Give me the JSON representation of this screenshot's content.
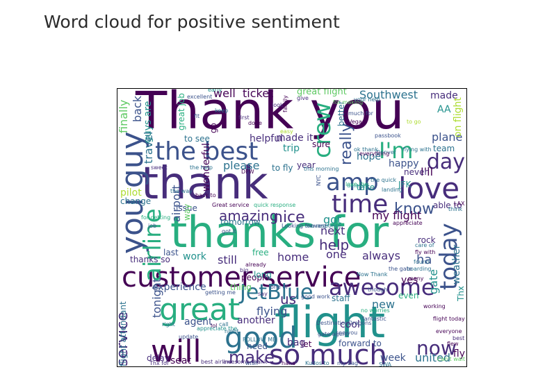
{
  "page": {
    "title": "Word cloud for positive sentiment"
  },
  "chart_data": {
    "type": "word_cloud",
    "title": "",
    "colormap": "viridis",
    "background": "#ffffff",
    "words": [
      "Thank you",
      "thank",
      "thanks for",
      "customer service",
      "flight",
      "great",
      "so much",
      "good",
      "will",
      "the best",
      "you guy",
      "airline",
      "love",
      "time",
      "amp",
      "today",
      "crew",
      "I'm",
      "day",
      "awesome",
      "JetBlue",
      "now",
      "make",
      "know",
      "service",
      "nice",
      "amazing",
      "help",
      "really",
      "Southwest",
      "well",
      "ticket",
      "great flight",
      "made",
      "back",
      "guys are",
      "travel",
      "finally",
      "plane",
      "team",
      "AA",
      "on flight",
      "I'll",
      "hope",
      "happy",
      "please",
      "airport",
      "pilot",
      "change",
      "experience",
      "tonight",
      "flight attendant",
      "us",
      "got",
      "next",
      "my flight",
      "one",
      "always",
      "ha",
      "home",
      "still",
      "work",
      "thanks so",
      "last",
      "free",
      "rock",
      "gate",
      "weather",
      "Thx",
      "people",
      "thing",
      "flying",
      "agent",
      "another",
      "new",
      "staff",
      "even",
      "yes",
      "cool",
      "week",
      "united",
      "fly",
      "delay",
      "seat",
      "need",
      "bag",
      "let",
      "forward to",
      "year",
      "trip",
      "sure",
      "to fly",
      "made it",
      "helpful",
      "to see",
      "JFK",
      "take",
      "never",
      "able to",
      "issue",
      "tomorrow",
      "way",
      "wonderful",
      "great job",
      "long",
      "better",
      "go",
      "keep",
      "early",
      "excellent",
      "family",
      "give",
      "your help",
      "for making",
      "much for",
      "Vegas",
      "passbook",
      "Denver",
      "flying with",
      "ok thank",
      "everything",
      "the quick",
      "delayed",
      "landing",
      "appreciate",
      "the response",
      "quick response",
      "Great service",
      "Looking forward",
      "this morning",
      "getting me",
      "DestinationDragons",
      "gate agent",
      "see you",
      "lol",
      "FOLLOW ME",
      "haha",
      "Kudos to",
      "my bag",
      "awesome thank",
      "wish",
      "best airline",
      "Thx for",
      "update",
      "right",
      "call",
      "appreciate the",
      "night",
      "good work",
      "though",
      "no worries",
      "fantastic",
      "working",
      "flight today",
      "everyone",
      "flew",
      "SWA",
      "Can't wait",
      "think",
      "care of",
      "fly with",
      "found",
      "boarding",
      "many",
      "the gate",
      "Now Thank",
      "to go",
      "easy",
      "first",
      "DFW",
      "already",
      "big",
      "one of",
      "say",
      "look",
      "done",
      "fit",
      "job",
      "LAX",
      "best",
      "sweet",
      "the help",
      "got it",
      "the way",
      "back to",
      "for getting",
      "love the",
      "NYC",
      "y'all"
    ]
  }
}
